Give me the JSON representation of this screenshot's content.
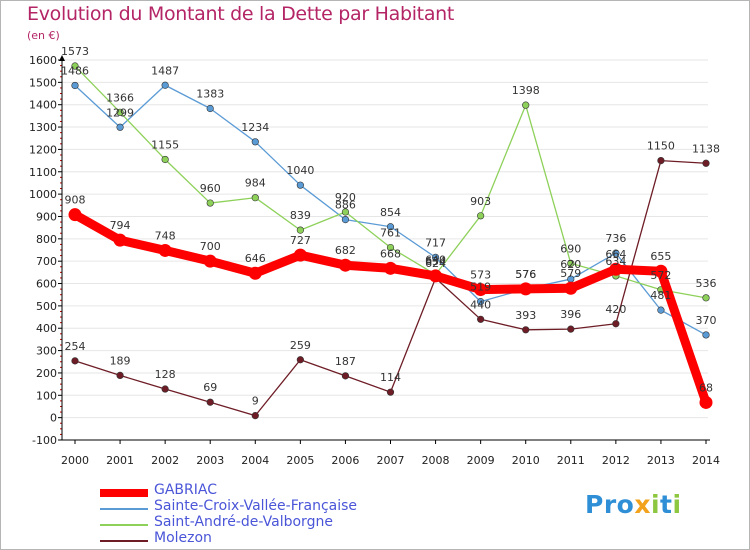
{
  "title": "Evolution du Montant de la Dette par Habitant",
  "unit": "(en €)",
  "colors": {
    "title": "#b42566",
    "axis": "#000000",
    "grid": "#e6e6e6",
    "legend_text": "#4a55d8"
  },
  "logo": {
    "text": "Proxiti"
  },
  "chart_data": {
    "type": "line",
    "title": "Evolution du Montant de la Dette par Habitant",
    "ylabel": "(en €)",
    "x": [
      "2000",
      "2001",
      "2002",
      "2003",
      "2004",
      "2005",
      "2006",
      "2007",
      "2008",
      "2009",
      "2010",
      "2011",
      "2012",
      "2013",
      "2014"
    ],
    "ylim": [
      -100,
      1600
    ],
    "yticks": [
      -100,
      0,
      100,
      200,
      300,
      400,
      500,
      600,
      700,
      800,
      900,
      1000,
      1100,
      1200,
      1300,
      1400,
      1500,
      1600
    ],
    "grid": true,
    "legend_position": "bottom-left",
    "series": [
      {
        "name": "GABRIAC",
        "color": "#ff0000",
        "values": [
          908,
          794,
          748,
          700,
          646,
          727,
          682,
          668,
          634,
          573,
          576,
          579,
          664,
          655,
          68
        ]
      },
      {
        "name": "Sainte-Croix-Vallée-Française",
        "color": "#5b9bd5",
        "values": [
          1486,
          1299,
          1487,
          1383,
          1234,
          1040,
          886,
          854,
          717,
          519,
          576,
          620,
          736,
          481,
          370
        ]
      },
      {
        "name": "Saint-André-de-Valborgne",
        "color": "#8ed15a",
        "values": [
          1573,
          1366,
          1155,
          960,
          984,
          839,
          920,
          761,
          640,
          903,
          1398,
          690,
          634,
          572,
          536
        ]
      },
      {
        "name": "Molezon",
        "color": "#6e1d26",
        "values": [
          254,
          189,
          128,
          69,
          9,
          259,
          187,
          114,
          624,
          440,
          393,
          396,
          420,
          1150,
          1138
        ]
      }
    ]
  }
}
